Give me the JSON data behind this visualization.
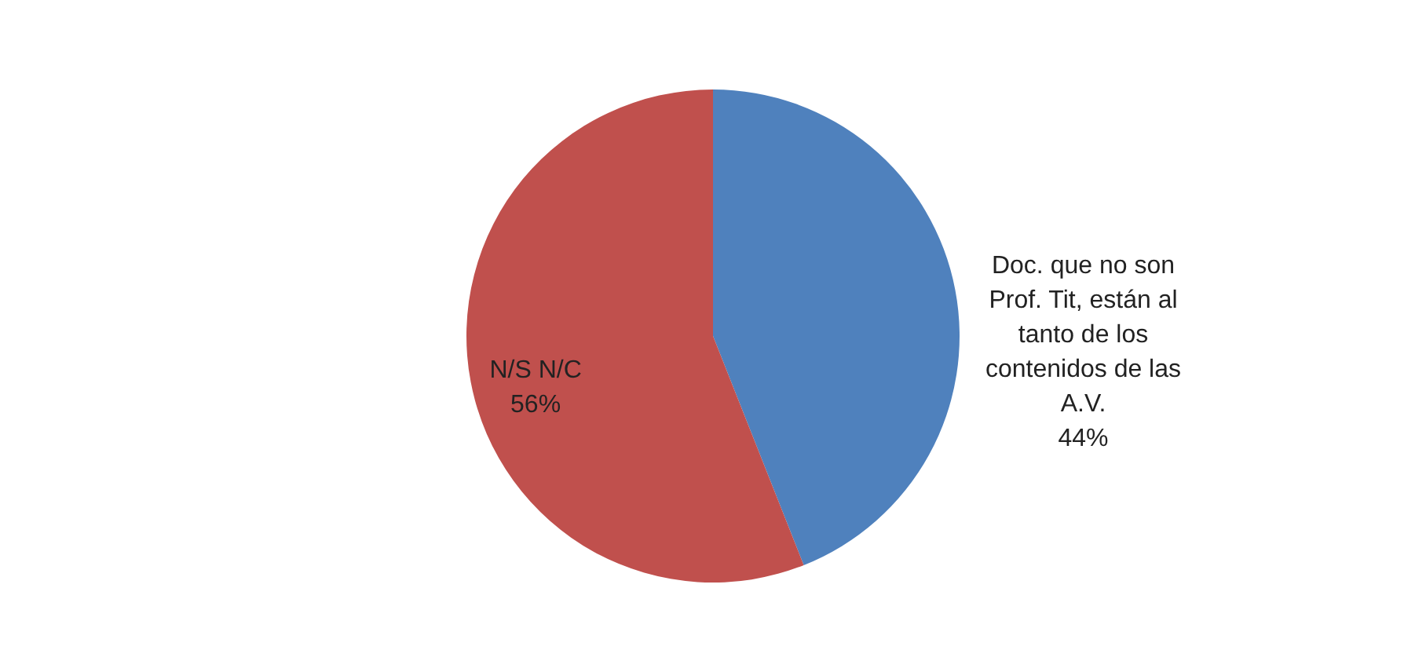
{
  "chart_data": {
    "type": "pie",
    "categories": [
      "Doc. que no son Prof. Tit, están al tanto de los contenidos de las A.V.",
      "N/S N/C"
    ],
    "values": [
      44,
      56
    ],
    "value_labels": [
      "44%",
      "56%"
    ],
    "colors": [
      "#4f81bd",
      "#c0504d"
    ],
    "legend": false
  }
}
